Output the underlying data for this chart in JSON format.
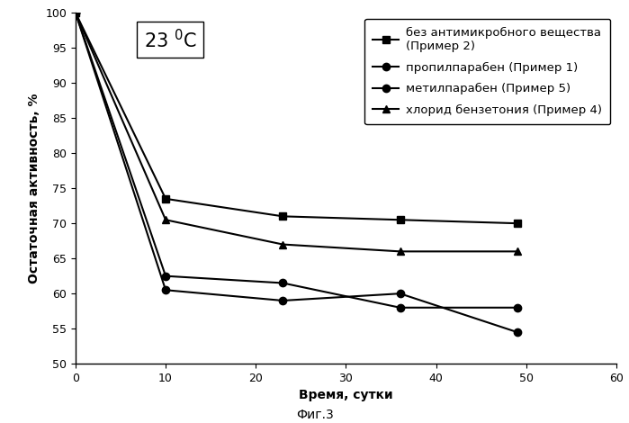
{
  "xlabel": "Время, сутки",
  "ylabel": "Остаточная активность, %",
  "caption": "Фиг.3",
  "temp_label": "23 ",
  "temp_sup": "0",
  "temp_unit": "C",
  "xlim": [
    0,
    60
  ],
  "ylim": [
    50,
    100
  ],
  "xticks": [
    0,
    10,
    20,
    30,
    40,
    50,
    60
  ],
  "yticks": [
    50,
    55,
    60,
    65,
    70,
    75,
    80,
    85,
    90,
    95,
    100
  ],
  "series": [
    {
      "label": "без антимикробного вещества\n(Пример 2)",
      "x": [
        0,
        10,
        23,
        36,
        49
      ],
      "y": [
        100,
        73.5,
        71,
        70.5,
        70
      ],
      "marker": "s",
      "markersize": 6,
      "linewidth": 1.5
    },
    {
      "label": "пропилпарабен (Пример 1)",
      "x": [
        0,
        10,
        23,
        36,
        49
      ],
      "y": [
        100,
        62.5,
        61.5,
        58,
        58
      ],
      "marker": "o",
      "markersize": 6,
      "linewidth": 1.5
    },
    {
      "label": "метилпарабен (Пример 5)",
      "x": [
        0,
        10,
        23,
        36,
        49
      ],
      "y": [
        100,
        60.5,
        59,
        60,
        54.5
      ],
      "marker": "o",
      "markersize": 6,
      "linewidth": 1.5
    },
    {
      "label": "хлорид бензетония (Пример 4)",
      "x": [
        0,
        10,
        23,
        36,
        49
      ],
      "y": [
        100,
        70.5,
        67,
        66,
        66
      ],
      "marker": "^",
      "markersize": 6,
      "linewidth": 1.5
    }
  ],
  "background_color": "#ffffff",
  "legend_fontsize": 9.5,
  "axis_label_fontsize": 10,
  "tick_fontsize": 9,
  "caption_fontsize": 10,
  "annot_fontsize": 15
}
